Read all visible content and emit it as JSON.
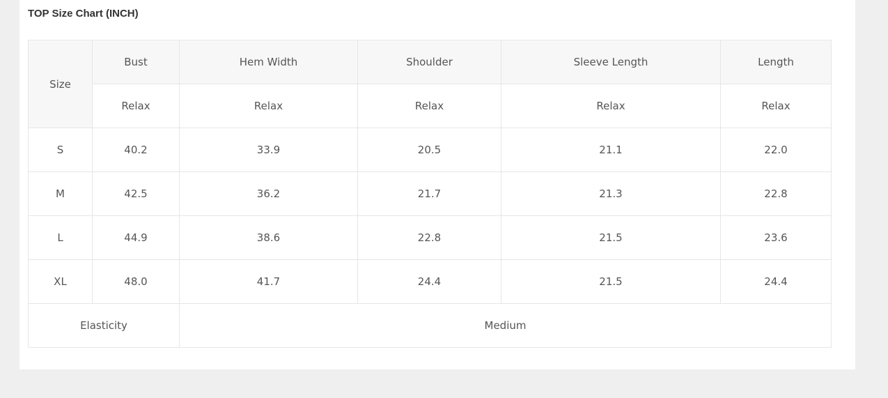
{
  "title": "TOP Size Chart (INCH)",
  "table": {
    "size_header": "Size",
    "columns": [
      "Bust",
      "Hem Width",
      "Shoulder",
      "Sleeve Length",
      "Length"
    ],
    "subheaders": [
      "Relax",
      "Relax",
      "Relax",
      "Relax",
      "Relax"
    ],
    "rows": [
      {
        "size": "S",
        "values": [
          "40.2",
          "33.9",
          "20.5",
          "21.1",
          "22.0"
        ]
      },
      {
        "size": "M",
        "values": [
          "42.5",
          "36.2",
          "21.7",
          "21.3",
          "22.8"
        ]
      },
      {
        "size": "L",
        "values": [
          "44.9",
          "38.6",
          "22.8",
          "21.5",
          "23.6"
        ]
      },
      {
        "size": "XL",
        "values": [
          "48.0",
          "41.7",
          "24.4",
          "21.5",
          "24.4"
        ]
      }
    ],
    "elasticity_label": "Elasticity",
    "elasticity_value": "Medium"
  }
}
